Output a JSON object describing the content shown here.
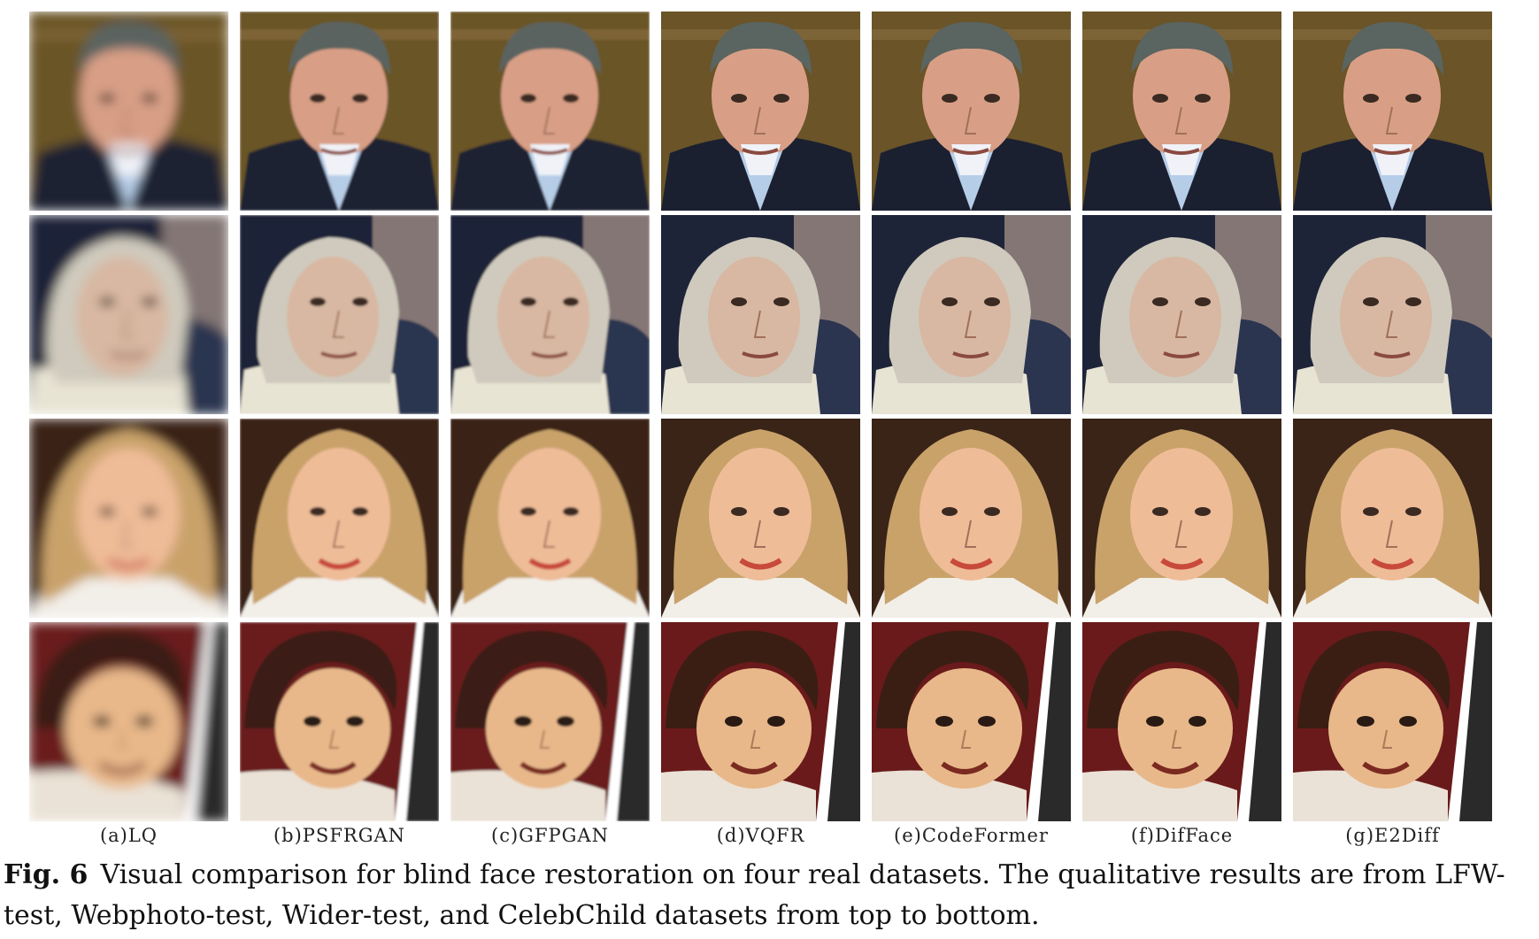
{
  "figure": {
    "columns": [
      {
        "id": "a",
        "label": "(a)LQ"
      },
      {
        "id": "b",
        "label": "(b)PSFRGAN"
      },
      {
        "id": "c",
        "label": "(c)GFPGAN"
      },
      {
        "id": "d",
        "label": "(d)VQFR"
      },
      {
        "id": "e",
        "label": "(e)CodeFormer"
      },
      {
        "id": "f",
        "label": "(f)DifFace"
      },
      {
        "id": "g",
        "label": "(g)E2Diff"
      }
    ],
    "rows": [
      {
        "id": "lfw",
        "subject": "man-dark-suit",
        "bg": "#6a5428",
        "skin": "#d89f86",
        "hair": "#5a6460",
        "cloth": "#1b2030",
        "accent": "#b6cde8"
      },
      {
        "id": "webphoto",
        "subject": "elderly-woman",
        "bg": "#1e2438",
        "skin": "#d8b8a2",
        "hair": "#cfcabd",
        "cloth": "#e8e4d4",
        "accent": "#2c3550"
      },
      {
        "id": "wider",
        "subject": "blonde-woman",
        "bg": "#3a2418",
        "skin": "#efbc98",
        "hair": "#c9a26a",
        "cloth": "#f2eee8",
        "accent": "#c84a3a"
      },
      {
        "id": "celebchild",
        "subject": "child",
        "bg": "#6a1a1a",
        "skin": "#e8b88a",
        "hair": "#3a1e14",
        "cloth": "#eae2d6",
        "accent": "#d4c8b8"
      }
    ]
  },
  "caption": {
    "prefix": "Fig. 6",
    "text": "Visual comparison for blind face restoration on four real datasets. The qualitative results are from LFW-test, Webphoto-test, Wider-test, and CelebChild datasets from top to bottom."
  }
}
